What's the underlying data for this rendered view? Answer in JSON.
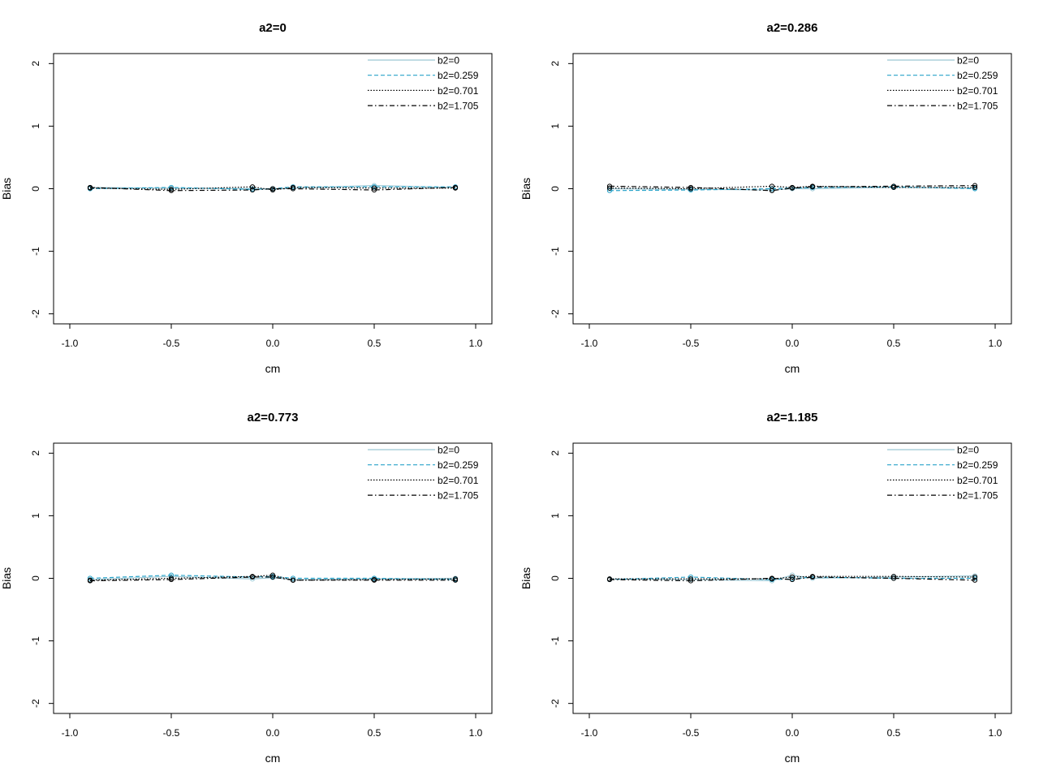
{
  "chart_data": [
    {
      "type": "line",
      "title": "a2=0",
      "xlabel": "cm",
      "ylabel": "Bias",
      "xlim": [
        -1.0,
        1.0
      ],
      "ylim": [
        -2,
        2
      ],
      "x_ticks": [
        "-1.0",
        "-0.5",
        "0.0",
        "0.5",
        "1.0"
      ],
      "y_ticks": [
        "-2",
        "-1",
        "0",
        "1",
        "2"
      ],
      "legend_position": "top-right",
      "x": [
        -0.9,
        -0.5,
        -0.1,
        0.0,
        0.1,
        0.5,
        0.9
      ],
      "series": [
        {
          "name": "b2=0",
          "values": [
            0.02,
            0.01,
            0.0,
            -0.01,
            0.01,
            0.05,
            0.02
          ],
          "color": "#9cc7d4",
          "dash": "solid"
        },
        {
          "name": "b2=0.259",
          "values": [
            0.0,
            0.02,
            -0.01,
            0.0,
            0.03,
            0.03,
            0.03
          ],
          "color": "#29a3c9",
          "dash": "dashed"
        },
        {
          "name": "b2=0.701",
          "values": [
            0.01,
            -0.01,
            0.03,
            -0.02,
            0.02,
            0.01,
            0.01
          ],
          "color": "#000000",
          "dash": "dotted"
        },
        {
          "name": "b2=1.705",
          "values": [
            0.02,
            -0.03,
            -0.02,
            0.0,
            0.0,
            -0.02,
            0.02
          ],
          "color": "#000000",
          "dash": "dotdash"
        }
      ]
    },
    {
      "type": "line",
      "title": "a2=0.286",
      "xlabel": "cm",
      "ylabel": "Bias",
      "xlim": [
        -1.0,
        1.0
      ],
      "ylim": [
        -2,
        2
      ],
      "x_ticks": [
        "-1.0",
        "-0.5",
        "0.0",
        "0.5",
        "1.0"
      ],
      "y_ticks": [
        "-2",
        "-1",
        "0",
        "1",
        "2"
      ],
      "legend_position": "top-right",
      "x": [
        -0.9,
        -0.5,
        -0.1,
        0.0,
        0.1,
        0.5,
        0.9
      ],
      "series": [
        {
          "name": "b2=0",
          "values": [
            0.0,
            -0.01,
            -0.02,
            0.0,
            0.0,
            0.02,
            0.01
          ],
          "color": "#9cc7d4",
          "dash": "solid"
        },
        {
          "name": "b2=0.259",
          "values": [
            -0.03,
            -0.02,
            0.0,
            0.01,
            0.02,
            0.03,
            0.0
          ],
          "color": "#29a3c9",
          "dash": "dashed"
        },
        {
          "name": "b2=0.701",
          "values": [
            0.01,
            0.0,
            0.04,
            0.02,
            0.04,
            0.02,
            0.02
          ],
          "color": "#000000",
          "dash": "dotted"
        },
        {
          "name": "b2=1.705",
          "values": [
            0.04,
            0.02,
            -0.03,
            0.01,
            0.03,
            0.04,
            0.05
          ],
          "color": "#000000",
          "dash": "dotdash"
        }
      ]
    },
    {
      "type": "line",
      "title": "a2=0.773",
      "xlabel": "cm",
      "ylabel": "Bias",
      "xlim": [
        -1.0,
        1.0
      ],
      "ylim": [
        -2,
        2
      ],
      "x_ticks": [
        "-1.0",
        "-0.5",
        "0.0",
        "0.5",
        "1.0"
      ],
      "y_ticks": [
        "-2",
        "-1",
        "0",
        "1",
        "2"
      ],
      "legend_position": "top-right",
      "x": [
        -0.9,
        -0.5,
        -0.1,
        0.0,
        0.1,
        0.5,
        0.9
      ],
      "series": [
        {
          "name": "b2=0",
          "values": [
            -0.02,
            0.03,
            -0.01,
            0.01,
            -0.02,
            -0.01,
            0.0
          ],
          "color": "#9cc7d4",
          "dash": "solid"
        },
        {
          "name": "b2=0.259",
          "values": [
            0.0,
            0.05,
            0.02,
            0.03,
            0.0,
            0.0,
            -0.02
          ],
          "color": "#29a3c9",
          "dash": "dashed"
        },
        {
          "name": "b2=0.701",
          "values": [
            -0.03,
            0.0,
            0.03,
            0.05,
            -0.03,
            -0.02,
            -0.01
          ],
          "color": "#000000",
          "dash": "dotted"
        },
        {
          "name": "b2=1.705",
          "values": [
            -0.04,
            -0.02,
            0.02,
            0.02,
            -0.03,
            -0.03,
            -0.03
          ],
          "color": "#000000",
          "dash": "dotdash"
        }
      ]
    },
    {
      "type": "line",
      "title": "a2=1.185",
      "xlabel": "cm",
      "ylabel": "Bias",
      "xlim": [
        -1.0,
        1.0
      ],
      "ylim": [
        -2,
        2
      ],
      "x_ticks": [
        "-1.0",
        "-0.5",
        "0.0",
        "0.5",
        "1.0"
      ],
      "y_ticks": [
        "-2",
        "-1",
        "0",
        "1",
        "2"
      ],
      "legend_position": "top-right",
      "x": [
        -0.9,
        -0.5,
        -0.1,
        0.0,
        0.1,
        0.5,
        0.9
      ],
      "series": [
        {
          "name": "b2=0",
          "values": [
            -0.01,
            -0.02,
            -0.04,
            0.05,
            0.0,
            0.02,
            0.04
          ],
          "color": "#9cc7d4",
          "dash": "solid"
        },
        {
          "name": "b2=0.259",
          "values": [
            -0.02,
            0.02,
            -0.02,
            -0.01,
            0.02,
            0.0,
            0.0
          ],
          "color": "#29a3c9",
          "dash": "dashed"
        },
        {
          "name": "b2=0.701",
          "values": [
            -0.01,
            -0.01,
            -0.01,
            0.02,
            0.03,
            0.03,
            0.02
          ],
          "color": "#000000",
          "dash": "dotted"
        },
        {
          "name": "b2=1.705",
          "values": [
            -0.02,
            -0.04,
            0.0,
            -0.02,
            0.02,
            0.0,
            -0.03
          ],
          "color": "#000000",
          "dash": "dotdash"
        }
      ]
    }
  ]
}
